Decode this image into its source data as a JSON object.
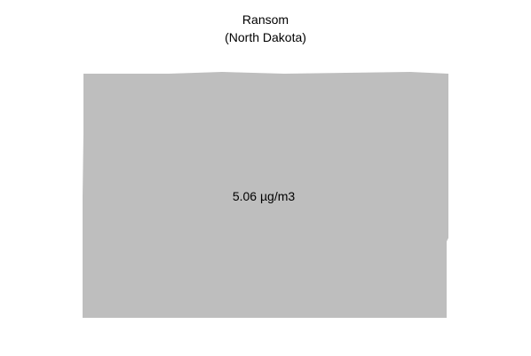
{
  "title": {
    "county": "Ransom",
    "state": "(North Dakota)"
  },
  "region": {
    "value_label": "5.06 µg/m3",
    "fill_color": "#bebebe"
  }
}
